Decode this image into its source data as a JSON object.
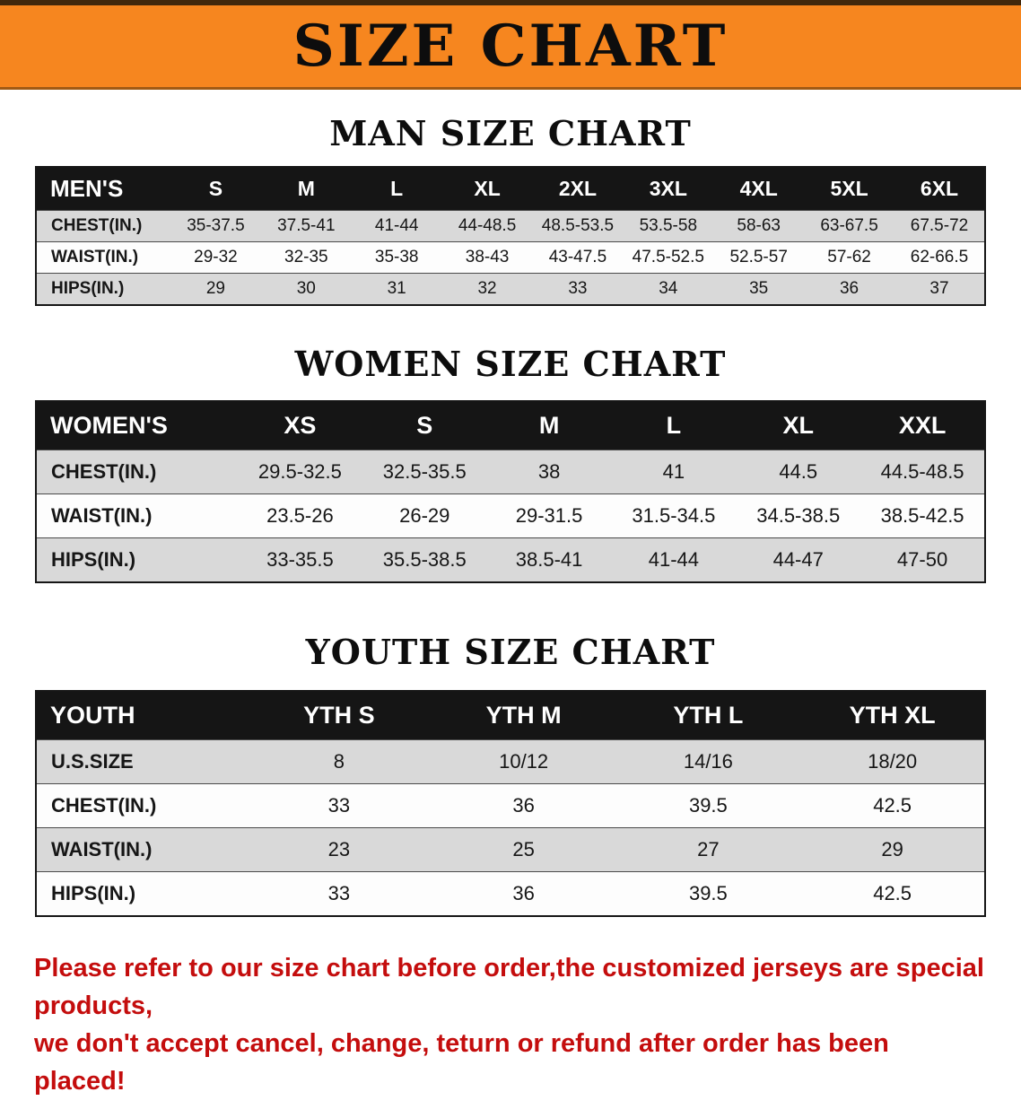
{
  "banner": {
    "title": "SIZE CHART",
    "background": "#f6861f"
  },
  "tables": {
    "men": {
      "heading": "MAN SIZE CHART",
      "label": "MEN'S",
      "sizes": [
        "S",
        "M",
        "L",
        "XL",
        "2XL",
        "3XL",
        "4XL",
        "5XL",
        "6XL"
      ],
      "rows": [
        {
          "label": "CHEST(IN.)",
          "values": [
            "35-37.5",
            "37.5-41",
            "41-44",
            "44-48.5",
            "48.5-53.5",
            "53.5-58",
            "58-63",
            "63-67.5",
            "67.5-72"
          ]
        },
        {
          "label": "WAIST(IN.)",
          "values": [
            "29-32",
            "32-35",
            "35-38",
            "38-43",
            "43-47.5",
            "47.5-52.5",
            "52.5-57",
            "57-62",
            "62-66.5"
          ]
        },
        {
          "label": "HIPS(IN.)",
          "values": [
            "29",
            "30",
            "31",
            "32",
            "33",
            "34",
            "35",
            "36",
            "37"
          ]
        }
      ]
    },
    "women": {
      "heading": "WOMEN SIZE CHART",
      "label": "WOMEN'S",
      "sizes": [
        "XS",
        "S",
        "M",
        "L",
        "XL",
        "XXL"
      ],
      "rows": [
        {
          "label": "CHEST(IN.)",
          "values": [
            "29.5-32.5",
            "32.5-35.5",
            "38",
            "41",
            "44.5",
            "44.5-48.5"
          ]
        },
        {
          "label": "WAIST(IN.)",
          "values": [
            "23.5-26",
            "26-29",
            "29-31.5",
            "31.5-34.5",
            "34.5-38.5",
            "38.5-42.5"
          ]
        },
        {
          "label": "HIPS(IN.)",
          "values": [
            "33-35.5",
            "35.5-38.5",
            "38.5-41",
            "41-44",
            "44-47",
            "47-50"
          ]
        }
      ]
    },
    "youth": {
      "heading": "YOUTH SIZE CHART",
      "label": "YOUTH",
      "sizes": [
        "YTH S",
        "YTH M",
        "YTH L",
        "YTH XL"
      ],
      "rows": [
        {
          "label": "U.S.SIZE",
          "values": [
            "8",
            "10/12",
            "14/16",
            "18/20"
          ]
        },
        {
          "label": "CHEST(IN.)",
          "values": [
            "33",
            "36",
            "39.5",
            "42.5"
          ]
        },
        {
          "label": "WAIST(IN.)",
          "values": [
            "23",
            "25",
            "27",
            "29"
          ]
        },
        {
          "label": "HIPS(IN.)",
          "values": [
            "33",
            "36",
            "39.5",
            "42.5"
          ]
        }
      ]
    }
  },
  "notice": {
    "line1": "Please refer to our size chart before order,the customized jerseys are special products,",
    "line2": "we don't accept cancel, change, teturn or refund after order has been placed!",
    "color": "#c40d0d"
  }
}
